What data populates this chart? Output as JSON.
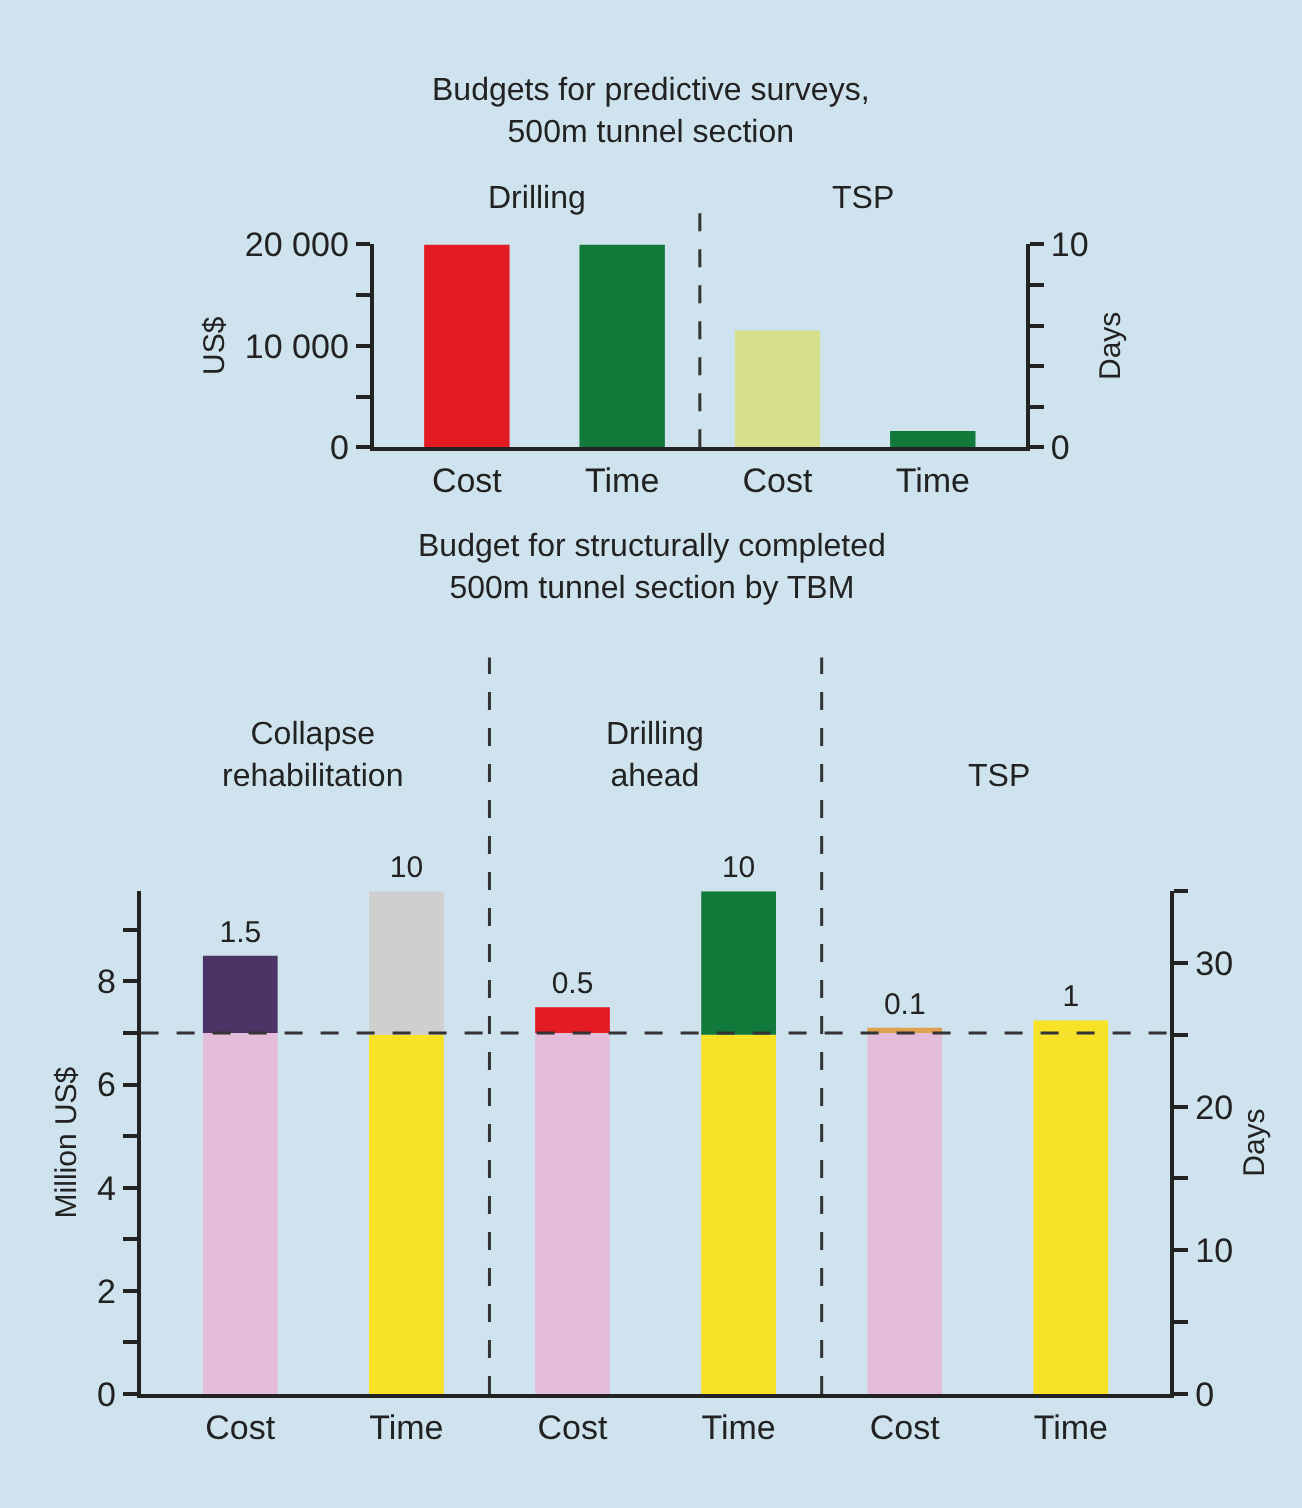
{
  "chart_data": [
    {
      "type": "bar",
      "title": "Budgets for predictive surveys,\n500m tunnel section",
      "ylabel": "US$",
      "y2label": "Days",
      "categories": [
        "Cost",
        "Time",
        "Cost",
        "Time"
      ],
      "series": [
        {
          "values": [
            20000,
            null,
            11500,
            null
          ],
          "colors": [
            "#e31b23",
            null,
            "#d6e08c",
            null
          ],
          "axis": "y"
        },
        {
          "values": [
            null,
            10,
            null,
            0.8
          ],
          "color": "#117a3a",
          "axis": "y2"
        }
      ],
      "ylim": [
        0,
        20000
      ],
      "yticks": [
        {
          "value": 0,
          "label": "0"
        },
        {
          "value": 5000,
          "label": null
        },
        {
          "value": 10000,
          "label": "10 000"
        },
        {
          "value": 15000,
          "label": null
        },
        {
          "value": 20000,
          "label": "20 000"
        }
      ],
      "y2lim": [
        0,
        10
      ],
      "y2ticks": [
        0,
        {
          "value": 2,
          "label": null
        },
        {
          "value": 4,
          "label": null
        },
        {
          "value": 6,
          "label": null
        },
        {
          "value": 8,
          "label": null
        },
        10
      ],
      "annotations": [
        "Drilling",
        "TSP"
      ]
    },
    {
      "type": "bar",
      "title": "Budget for structurally completed\n500m tunnel section by TBM",
      "ylabel": "Million US$",
      "y2label": "Days",
      "categories": [
        "Cost",
        "Time",
        "Cost",
        "Time",
        "Cost",
        "Time"
      ],
      "stacked": true,
      "series": [
        {
          "values": [
            7,
            null,
            7,
            null,
            7,
            null
          ],
          "color": "#e2bcd8",
          "axis": "y"
        },
        {
          "values": [
            null,
            25,
            null,
            25,
            null,
            25
          ],
          "color": "#f7e225",
          "axis": "y2"
        },
        {
          "values": [
            1.5,
            null,
            0.5,
            null,
            0.1,
            null
          ],
          "colors": [
            "#4b3366",
            null,
            "#e31b23",
            null,
            "#e0a050",
            null
          ],
          "axis": "y",
          "value_labels": [
            "1.5",
            null,
            "0.5",
            null,
            "0.1",
            null
          ]
        },
        {
          "values": [
            null,
            10,
            null,
            10,
            null,
            1
          ],
          "colors": [
            null,
            "#cfcfcf",
            null,
            "#117a3a",
            null,
            "#f7e225"
          ],
          "axis": "y2",
          "value_labels": [
            null,
            "10",
            null,
            "10",
            null,
            "1"
          ]
        }
      ],
      "ylim": [
        0,
        9.75
      ],
      "yticks": [
        0,
        {
          "value": 1,
          "label": null
        },
        2,
        {
          "value": 3,
          "label": null
        },
        4,
        {
          "value": 5,
          "label": null
        },
        6,
        {
          "value": 7,
          "label": null
        },
        8,
        {
          "value": 9,
          "label": null
        }
      ],
      "y2lim": [
        0,
        35
      ],
      "y2ticks": [
        0,
        {
          "value": 5,
          "label": null
        },
        10,
        {
          "value": 15,
          "label": null
        },
        20,
        {
          "value": 25,
          "label": null
        },
        30,
        {
          "value": 35,
          "label": null
        }
      ],
      "annotations": [
        "Collapse\nrehabilitation",
        "Drilling\nahead",
        "TSP"
      ],
      "ref_lines": [
        {
          "axis": "y",
          "value": 7,
          "line_style": "dashed",
          "color": "#333333"
        }
      ]
    }
  ]
}
